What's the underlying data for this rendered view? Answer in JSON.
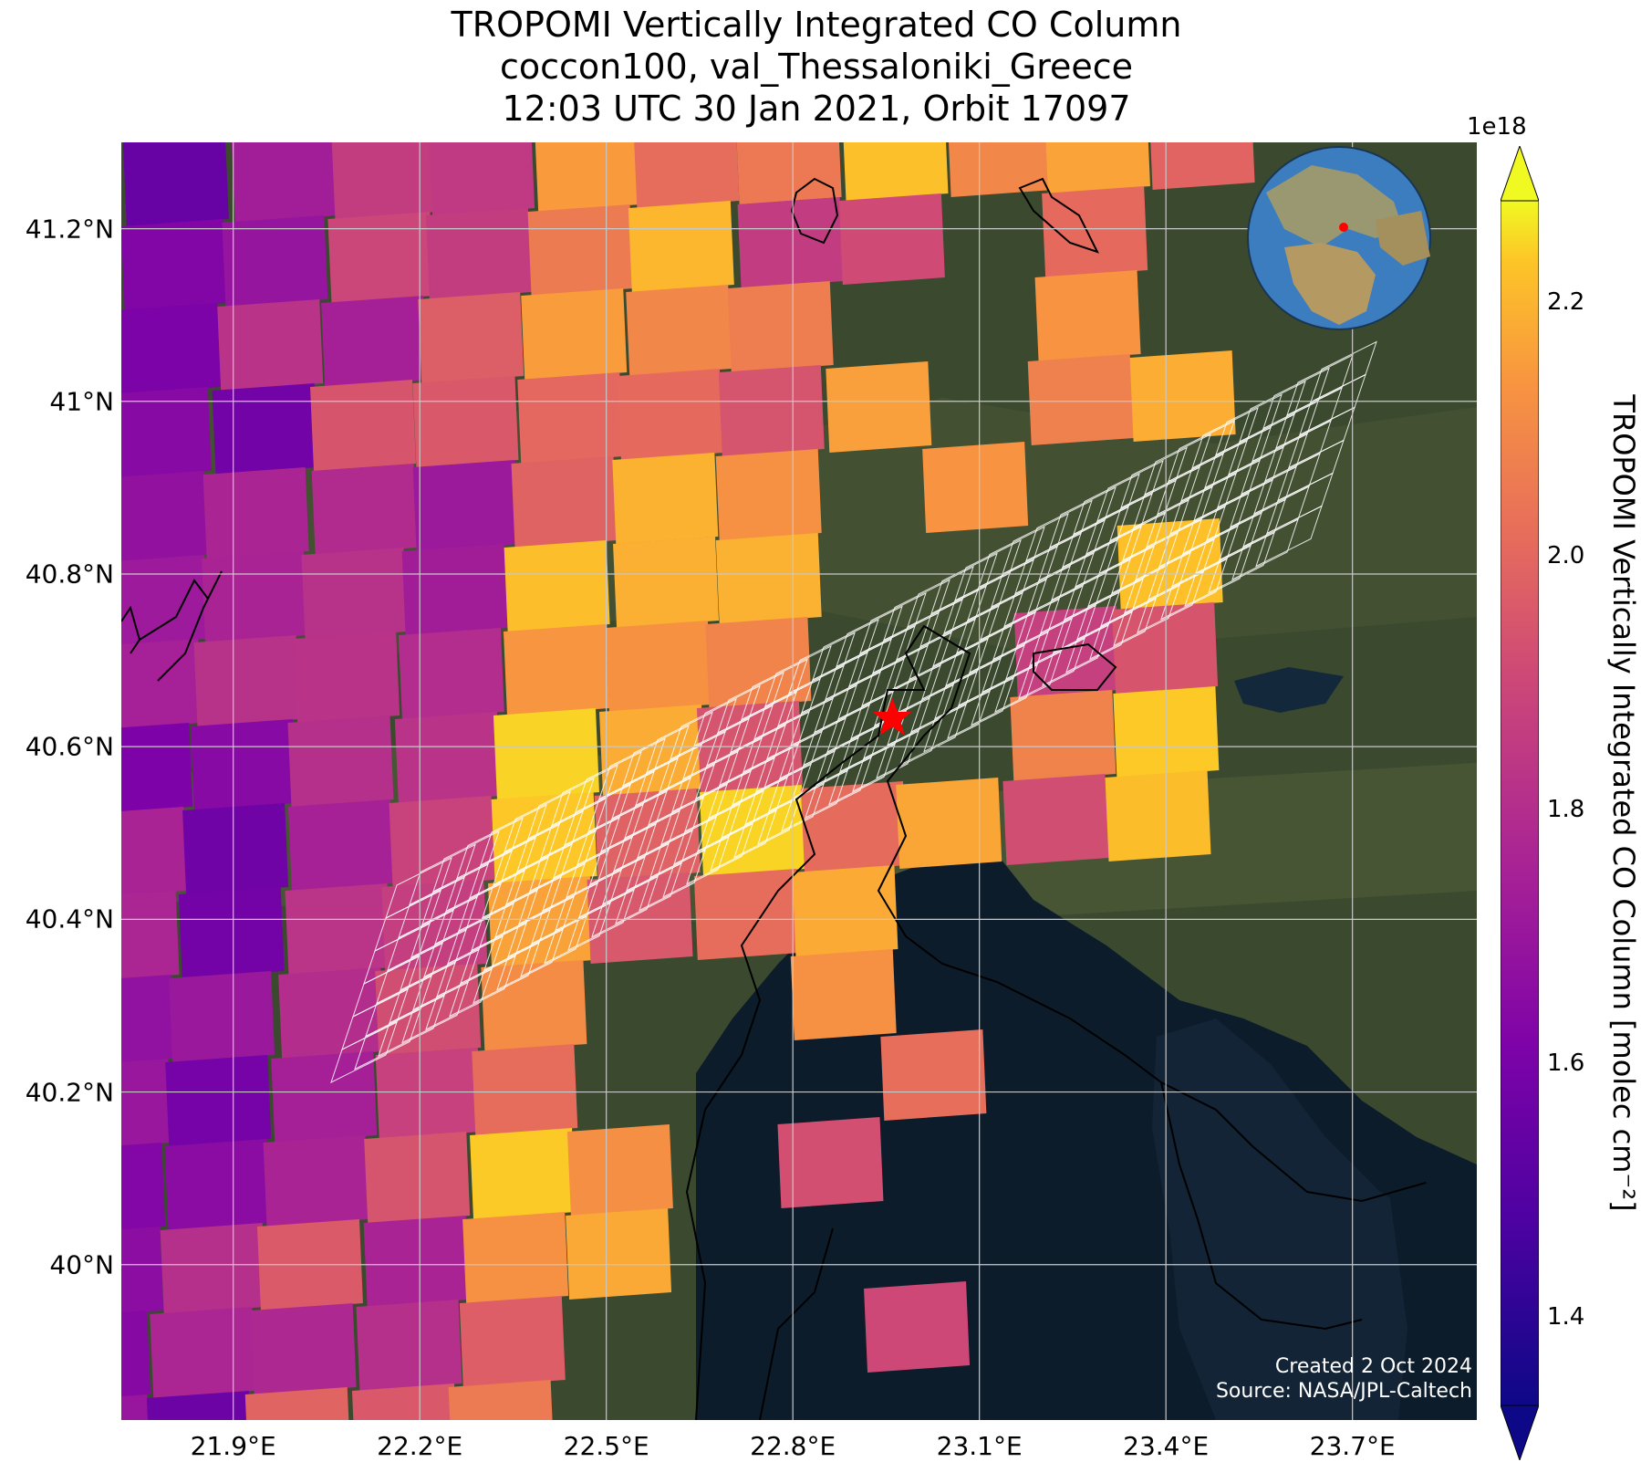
{
  "title": {
    "line1": "TROPOMI Vertically Integrated CO Column",
    "line2": "coccon100, val_Thessaloniki_Greece",
    "line3": "12:03 UTC 30 Jan 2021, Orbit 17097"
  },
  "map": {
    "lon_range": [
      21.72,
      23.9
    ],
    "lat_range": [
      39.82,
      41.3
    ],
    "lat_ticks": [
      {
        "value": 41.2,
        "label": "41.2°N"
      },
      {
        "value": 41.0,
        "label": "41°N"
      },
      {
        "value": 40.8,
        "label": "40.8°N"
      },
      {
        "value": 40.6,
        "label": "40.6°N"
      },
      {
        "value": 40.4,
        "label": "40.4°N"
      },
      {
        "value": 40.2,
        "label": "40.2°N"
      },
      {
        "value": 40.0,
        "label": "40°N"
      }
    ],
    "lon_ticks": [
      {
        "value": 21.9,
        "label": "21.9°E"
      },
      {
        "value": 22.2,
        "label": "22.2°E"
      },
      {
        "value": 22.5,
        "label": "22.5°E"
      },
      {
        "value": 22.8,
        "label": "22.8°E"
      },
      {
        "value": 23.1,
        "label": "23.1°E"
      },
      {
        "value": 23.4,
        "label": "23.4°E"
      },
      {
        "value": 23.7,
        "label": "23.7°E"
      }
    ],
    "gridlines": true,
    "site_marker": {
      "lon": 22.96,
      "lat": 40.634,
      "color": "#ff0000"
    },
    "colors": {
      "land": "#3b4a2e",
      "sea": "#0d1c2b",
      "coast": "#000000",
      "grid": "#c8c8c8",
      "footprint": "#ffffff"
    }
  },
  "colorbar": {
    "label": "TROPOMI Vertically Integrated CO Column [molec cm⁻²]",
    "multiplier": "1e18",
    "range": [
      1.33,
      2.28
    ],
    "colormap": "plasma",
    "ticks": [
      {
        "value": 1.4,
        "label": "1.4"
      },
      {
        "value": 1.6,
        "label": "1.6"
      },
      {
        "value": 1.8,
        "label": "1.8"
      },
      {
        "value": 2.0,
        "label": "2.0"
      },
      {
        "value": 2.2,
        "label": "2.2"
      }
    ],
    "extend": "both"
  },
  "credit": {
    "line1": "Created 2 Oct 2024",
    "line2": "Source: NASA/JPL-Caltech"
  },
  "inset": {
    "description": "globe-icon",
    "marker_color": "#ff0000"
  }
}
